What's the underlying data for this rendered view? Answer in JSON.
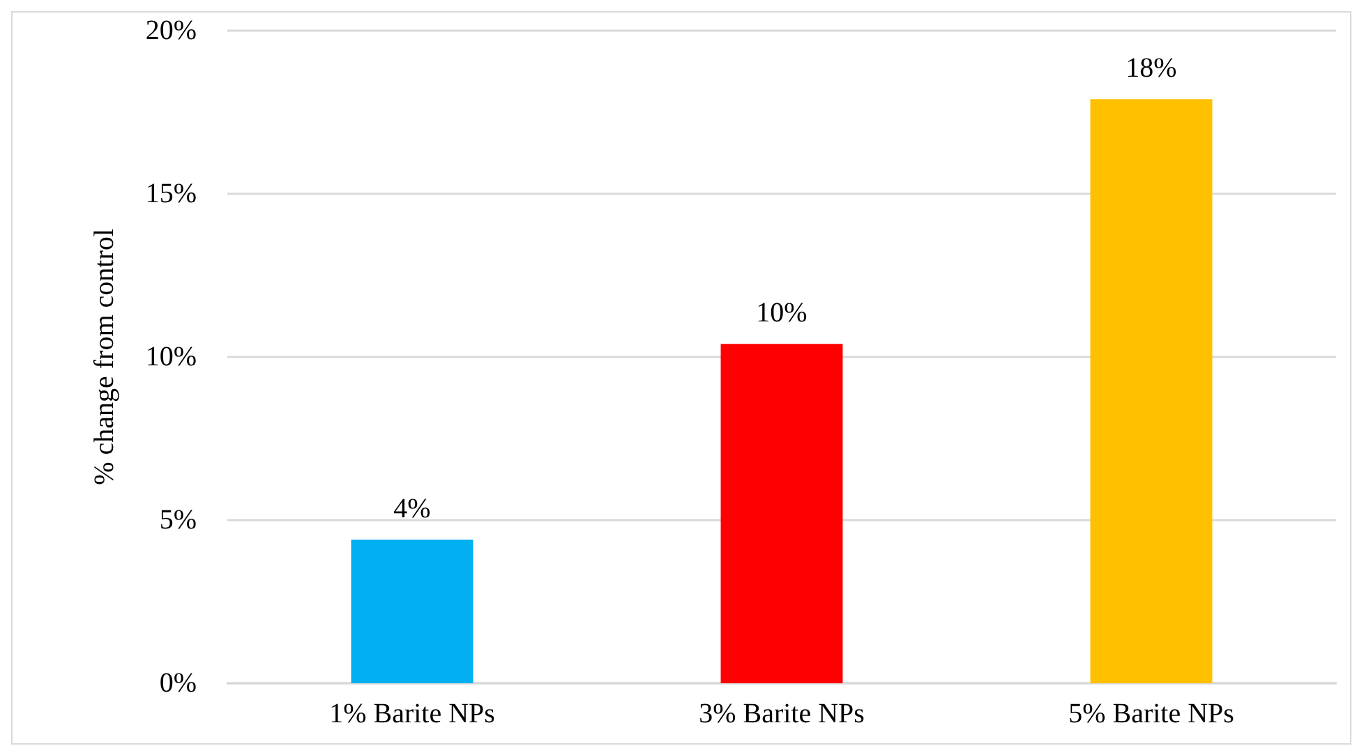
{
  "chart_data": {
    "type": "bar",
    "ylabel": "% change from control",
    "categories": [
      "1% Barite NPs",
      "3% Barite NPs",
      "5% Barite NPs"
    ],
    "values": [
      4.4,
      10.4,
      17.9
    ],
    "colors": [
      "#00b0f0",
      "#ff0000",
      "#ffc000"
    ],
    "value_labels": [
      "4%",
      "10%",
      "18%"
    ],
    "ylim": [
      0,
      20
    ],
    "yticks": [
      {
        "value": 0,
        "label": "0%"
      },
      {
        "value": 5,
        "label": "5%"
      },
      {
        "value": 10,
        "label": "10%"
      },
      {
        "value": 15,
        "label": "15%"
      },
      {
        "value": 20,
        "label": "20%"
      }
    ],
    "grid": "y"
  }
}
